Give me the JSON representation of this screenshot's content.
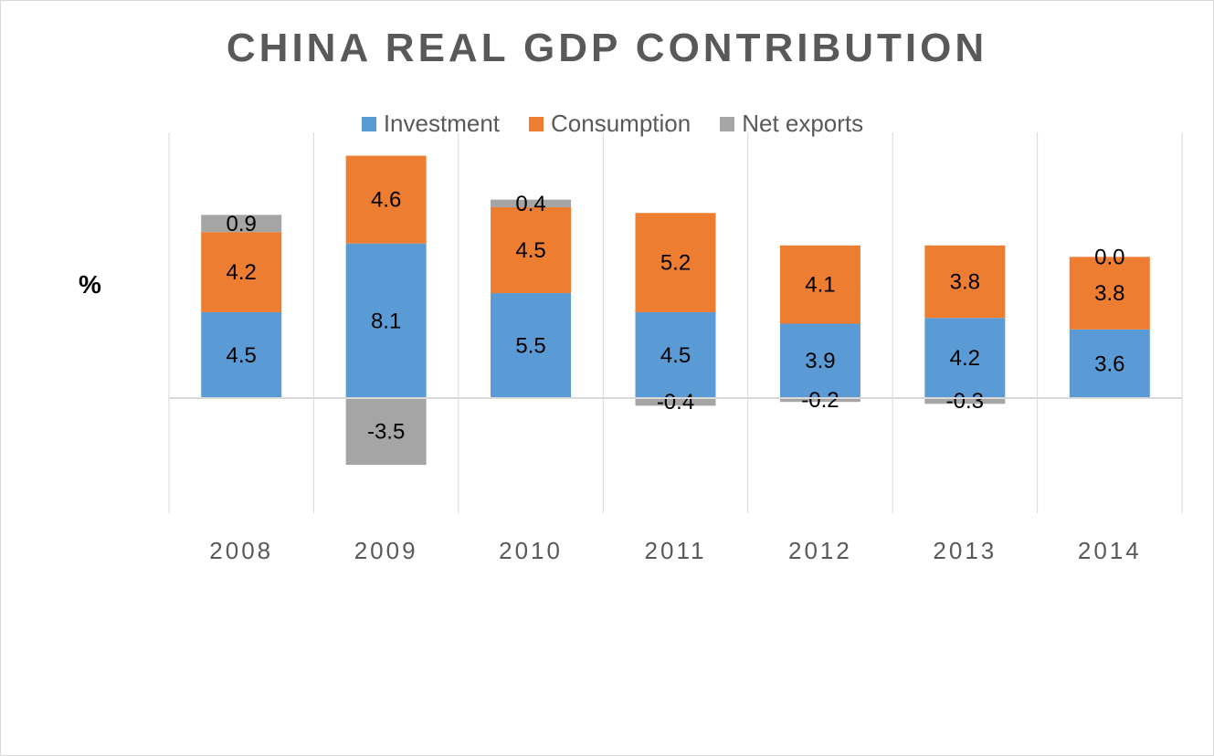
{
  "chart_data": {
    "type": "bar",
    "stacked": true,
    "title": "CHINA REAL GDP CONTRIBUTION",
    "ylabel": "%",
    "xlabel": "",
    "categories": [
      "2008",
      "2009",
      "2010",
      "2011",
      "2012",
      "2013",
      "2014"
    ],
    "series": [
      {
        "name": "Investment",
        "color": "#5b9bd5",
        "values": [
          4.5,
          8.1,
          5.5,
          4.5,
          3.9,
          4.2,
          3.6
        ]
      },
      {
        "name": "Consumption",
        "color": "#ed7d31",
        "values": [
          4.2,
          4.6,
          4.5,
          5.2,
          4.1,
          3.8,
          3.8
        ]
      },
      {
        "name": "Net exports",
        "color": "#a5a5a5",
        "values": [
          0.9,
          -3.5,
          0.4,
          -0.4,
          -0.2,
          -0.3,
          0.0
        ]
      }
    ],
    "data_labels": [
      [
        "4.5",
        "8.1",
        "5.5",
        "4.5",
        "3.9",
        "4.2",
        "3.6"
      ],
      [
        "4.2",
        "4.6",
        "4.5",
        "5.2",
        "4.1",
        "3.8",
        "3.8"
      ],
      [
        "0.9",
        "-3.5",
        "0.4",
        "-0.4",
        "-0.2",
        "-0.3",
        "0.0"
      ]
    ],
    "ylim": [
      -6,
      14
    ],
    "legend_position": "top",
    "grid": "vertical"
  }
}
